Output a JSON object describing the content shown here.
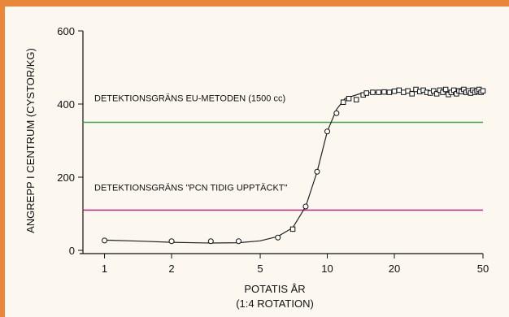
{
  "colors": {
    "frame": "#e8873a",
    "eu_line": "#3aa84a",
    "pcn_line": "#b0217a",
    "curve": "#222222"
  },
  "chart_data": {
    "type": "scatter",
    "xscale": "log",
    "xlim": [
      0.8,
      50
    ],
    "ylim": [
      0,
      600
    ],
    "xticks": [
      1,
      2,
      5,
      10,
      20,
      50
    ],
    "xtick_labels": [
      "1",
      "2",
      "5",
      "10",
      "20",
      "50"
    ],
    "yticks": [
      0,
      200,
      400,
      600
    ],
    "ytick_labels": [
      "0",
      "200",
      "400",
      "600"
    ],
    "xlabel": "POTATIS ÅR",
    "xlabel2": "(1:4 ROTATION)",
    "ylabel": "ANGREPP I CENTRUM (CYSTOR/KG)",
    "grid": false,
    "thresholds": [
      {
        "label": "DETEKTIONSGRÄNS EU-METODEN (1500 cc)",
        "y": 350
      },
      {
        "label": "DETEKTIONSGRÄNS \"PCN TIDIG UPPTÄCKT\"",
        "y": 110
      }
    ],
    "circles": [
      [
        1,
        27
      ],
      [
        2,
        25
      ],
      [
        3,
        25
      ],
      [
        4,
        25
      ],
      [
        6,
        35
      ],
      [
        8,
        120
      ],
      [
        9,
        215
      ],
      [
        10,
        325
      ],
      [
        11,
        375
      ]
    ],
    "squares": [
      [
        7,
        58
      ],
      [
        11.8,
        405
      ],
      [
        12.5,
        415
      ],
      [
        13.5,
        412
      ],
      [
        14.5,
        425
      ],
      [
        15,
        430
      ],
      [
        16,
        432
      ],
      [
        17,
        432
      ],
      [
        18,
        433
      ],
      [
        19,
        432
      ],
      [
        20,
        435
      ],
      [
        21,
        438
      ],
      [
        22,
        432
      ],
      [
        23,
        436
      ],
      [
        24,
        428
      ],
      [
        25,
        440
      ],
      [
        26,
        434
      ],
      [
        27,
        438
      ],
      [
        28,
        432
      ],
      [
        29,
        430
      ],
      [
        30,
        436
      ],
      [
        31,
        428
      ],
      [
        32,
        438
      ],
      [
        33,
        432
      ],
      [
        34,
        440
      ],
      [
        35,
        426
      ],
      [
        36,
        432
      ],
      [
        37,
        438
      ],
      [
        38,
        428
      ],
      [
        39,
        436
      ],
      [
        40,
        434
      ],
      [
        41,
        440
      ],
      [
        42,
        432
      ],
      [
        43,
        436
      ],
      [
        44,
        430
      ],
      [
        45,
        438
      ],
      [
        46,
        432
      ],
      [
        47,
        436
      ],
      [
        48,
        440
      ],
      [
        49,
        432
      ],
      [
        50,
        436
      ]
    ],
    "curve": [
      [
        1,
        28
      ],
      [
        1.5,
        25
      ],
      [
        2,
        22
      ],
      [
        3,
        20
      ],
      [
        4,
        21
      ],
      [
        5,
        26
      ],
      [
        6,
        38
      ],
      [
        7,
        62
      ],
      [
        8,
        120
      ],
      [
        9,
        215
      ],
      [
        10,
        325
      ],
      [
        11,
        385
      ],
      [
        12,
        415
      ],
      [
        14,
        428
      ],
      [
        16,
        432
      ],
      [
        20,
        434
      ],
      [
        30,
        435
      ],
      [
        50,
        436
      ]
    ]
  }
}
